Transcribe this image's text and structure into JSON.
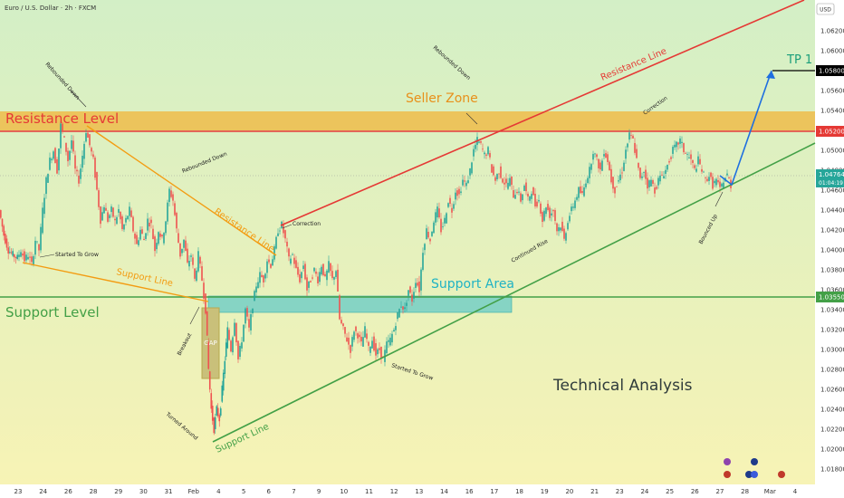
{
  "header": {
    "symbol_title": "Euro / U.S. Dollar · 2h · FXCM"
  },
  "currency_button": "USD",
  "chart_data": {
    "type": "candlestick",
    "title": "Euro / U.S. Dollar · 2h · FXCM",
    "ylim": [
      1.0176,
      1.0652
    ],
    "y_ticks": [
      "1.06200",
      "1.06000",
      "1.05800",
      "1.05600",
      "1.05400",
      "1.05200",
      "1.05000",
      "1.04800",
      "1.04600",
      "1.04400",
      "1.04200",
      "1.04000",
      "1.03800",
      "1.03600",
      "1.03400",
      "1.03200",
      "1.03000",
      "1.02800",
      "1.02600",
      "1.02400",
      "1.02200",
      "1.02000",
      "1.01800"
    ],
    "x_ticks": [
      "23",
      "24",
      "26",
      "28",
      "29",
      "30",
      "31",
      "Feb",
      "4",
      "5",
      "6",
      "7",
      "9",
      "10",
      "11",
      "12",
      "13",
      "14",
      "16",
      "17",
      "18",
      "19",
      "20",
      "21",
      "23",
      "24",
      "25",
      "26",
      "27",
      "28",
      "Mar",
      "4"
    ],
    "price_labels": {
      "tp": "1.05800",
      "resistance": "1.05200",
      "current_price": "1.04764",
      "countdown": "01:04:19",
      "support": "1.03550"
    },
    "levels": {
      "resistance": 1.052,
      "support": 1.0355,
      "tp": 1.058,
      "current": 1.04764,
      "seller_zone": [
        1.052,
        1.0542
      ],
      "support_area": [
        1.0341,
        1.0355
      ]
    },
    "path_points": [
      [
        0,
        1.044
      ],
      [
        5,
        1.0415
      ],
      [
        10,
        1.04
      ],
      [
        15,
        1.0395
      ],
      [
        20,
        1.0392
      ],
      [
        24,
        1.04
      ],
      [
        28,
        1.039
      ],
      [
        32,
        1.0395
      ],
      [
        36,
        1.0385
      ],
      [
        40,
        1.041
      ],
      [
        44,
        1.04
      ],
      [
        48,
        1.044
      ],
      [
        52,
        1.047
      ],
      [
        56,
        1.049
      ],
      [
        60,
        1.05
      ],
      [
        64,
        1.048
      ],
      [
        68,
        1.0525
      ],
      [
        72,
        1.051
      ],
      [
        76,
        1.049
      ],
      [
        80,
        1.051
      ],
      [
        84,
        1.048
      ],
      [
        88,
        1.047
      ],
      [
        92,
        1.0495
      ],
      [
        96,
        1.052
      ],
      [
        100,
        1.0505
      ],
      [
        104,
        1.049
      ],
      [
        108,
        1.046
      ],
      [
        112,
        1.043
      ],
      [
        116,
        1.0445
      ],
      [
        120,
        1.043
      ],
      [
        124,
        1.044
      ],
      [
        128,
        1.0428
      ],
      [
        132,
        1.044
      ],
      [
        136,
        1.042
      ],
      [
        140,
        1.043
      ],
      [
        144,
        1.044
      ],
      [
        148,
        1.042
      ],
      [
        152,
        1.0405
      ],
      [
        156,
        1.042
      ],
      [
        160,
        1.041
      ],
      [
        164,
        1.043
      ],
      [
        168,
        1.0425
      ],
      [
        172,
        1.04
      ],
      [
        176,
        1.042
      ],
      [
        180,
        1.041
      ],
      [
        184,
        1.043
      ],
      [
        188,
        1.046
      ],
      [
        192,
        1.045
      ],
      [
        196,
        1.042
      ],
      [
        200,
        1.0395
      ],
      [
        204,
        1.041
      ],
      [
        208,
        1.0385
      ],
      [
        212,
        1.0395
      ],
      [
        216,
        1.037
      ],
      [
        220,
        1.0395
      ],
      [
        224,
        1.037
      ],
      [
        228,
        1.034
      ],
      [
        231,
        1.028
      ],
      [
        234,
        1.024
      ],
      [
        237,
        1.022
      ],
      [
        240,
        1.024
      ],
      [
        243,
        1.023
      ],
      [
        246,
        1.026
      ],
      [
        249,
        1.029
      ],
      [
        252,
        1.032
      ],
      [
        256,
        1.03
      ],
      [
        260,
        1.033
      ],
      [
        264,
        1.029
      ],
      [
        268,
        1.031
      ],
      [
        272,
        1.034
      ],
      [
        276,
        1.032
      ],
      [
        280,
        1.0345
      ],
      [
        284,
        1.0365
      ],
      [
        288,
        1.0375
      ],
      [
        292,
        1.037
      ],
      [
        296,
        1.039
      ],
      [
        300,
        1.0385
      ],
      [
        304,
        1.04
      ],
      [
        308,
        1.042
      ],
      [
        312,
        1.0425
      ],
      [
        316,
        1.041
      ],
      [
        320,
        1.039
      ],
      [
        324,
        1.0395
      ],
      [
        328,
        1.038
      ],
      [
        332,
        1.037
      ],
      [
        336,
        1.0385
      ],
      [
        340,
        1.036
      ],
      [
        344,
        1.037
      ],
      [
        348,
        1.038
      ],
      [
        352,
        1.037
      ],
      [
        356,
        1.0385
      ],
      [
        360,
        1.037
      ],
      [
        364,
        1.0385
      ],
      [
        368,
        1.037
      ],
      [
        372,
        1.038
      ],
      [
        376,
        1.033
      ],
      [
        380,
        1.032
      ],
      [
        384,
        1.031
      ],
      [
        388,
        1.03
      ],
      [
        392,
        1.032
      ],
      [
        396,
        1.0315
      ],
      [
        400,
        1.0305
      ],
      [
        404,
        1.032
      ],
      [
        408,
        1.03
      ],
      [
        412,
        1.031
      ],
      [
        416,
        1.0295
      ],
      [
        420,
        1.03
      ],
      [
        424,
        1.029
      ],
      [
        428,
        1.0305
      ],
      [
        432,
        1.031
      ],
      [
        436,
        1.032
      ],
      [
        440,
        1.0335
      ],
      [
        444,
        1.0345
      ],
      [
        448,
        1.034
      ],
      [
        452,
        1.036
      ],
      [
        456,
        1.035
      ],
      [
        460,
        1.037
      ],
      [
        464,
        1.036
      ],
      [
        468,
        1.04
      ],
      [
        472,
        1.042
      ],
      [
        476,
        1.041
      ],
      [
        480,
        1.043
      ],
      [
        484,
        1.044
      ],
      [
        488,
        1.042
      ],
      [
        492,
        1.043
      ],
      [
        496,
        1.045
      ],
      [
        500,
        1.044
      ],
      [
        504,
        1.046
      ],
      [
        508,
        1.0455
      ],
      [
        512,
        1.047
      ],
      [
        516,
        1.0465
      ],
      [
        520,
        1.048
      ],
      [
        524,
        1.05
      ],
      [
        528,
        1.051
      ],
      [
        532,
        1.0505
      ],
      [
        536,
        1.0495
      ],
      [
        540,
        1.05
      ],
      [
        544,
        1.048
      ],
      [
        548,
        1.047
      ],
      [
        552,
        1.048
      ],
      [
        556,
        1.047
      ],
      [
        560,
        1.0465
      ],
      [
        564,
        1.047
      ],
      [
        568,
        1.0455
      ],
      [
        572,
        1.046
      ],
      [
        576,
        1.045
      ],
      [
        580,
        1.0465
      ],
      [
        584,
        1.045
      ],
      [
        588,
        1.046
      ],
      [
        592,
        1.0445
      ],
      [
        596,
        1.045
      ],
      [
        600,
        1.043
      ],
      [
        604,
        1.0445
      ],
      [
        608,
        1.0435
      ],
      [
        612,
        1.044
      ],
      [
        616,
        1.042
      ],
      [
        620,
        1.0425
      ],
      [
        624,
        1.041
      ],
      [
        628,
        1.043
      ],
      [
        632,
        1.044
      ],
      [
        636,
        1.045
      ],
      [
        640,
        1.046
      ],
      [
        644,
        1.0455
      ],
      [
        648,
        1.047
      ],
      [
        652,
        1.048
      ],
      [
        656,
        1.05
      ],
      [
        660,
        1.049
      ],
      [
        664,
        1.048
      ],
      [
        668,
        1.05
      ],
      [
        672,
        1.049
      ],
      [
        676,
        1.047
      ],
      [
        680,
        1.046
      ],
      [
        684,
        1.047
      ],
      [
        688,
        1.048
      ],
      [
        692,
        1.05
      ],
      [
        696,
        1.0515
      ],
      [
        700,
        1.051
      ],
      [
        704,
        1.049
      ],
      [
        708,
        1.047
      ],
      [
        712,
        1.048
      ],
      [
        716,
        1.0465
      ],
      [
        720,
        1.047
      ],
      [
        724,
        1.046
      ],
      [
        728,
        1.047
      ],
      [
        732,
        1.0475
      ],
      [
        736,
        1.048
      ],
      [
        740,
        1.049
      ],
      [
        744,
        1.05
      ],
      [
        748,
        1.0505
      ],
      [
        752,
        1.051
      ],
      [
        756,
        1.05
      ],
      [
        760,
        1.0495
      ],
      [
        764,
        1.049
      ],
      [
        768,
        1.048
      ],
      [
        772,
        1.049
      ],
      [
        776,
        1.048
      ],
      [
        780,
        1.047
      ],
      [
        784,
        1.0475
      ],
      [
        788,
        1.0465
      ],
      [
        792,
        1.047
      ],
      [
        796,
        1.046
      ],
      [
        800,
        1.047
      ],
      [
        804,
        1.0475
      ],
      [
        808,
        1.0465
      ]
    ]
  },
  "annotations": {
    "resistance_level": "Resistance Level",
    "support_level": "Support Level",
    "seller_zone": "Seller Zone",
    "support_area": "Support Area",
    "resistance_line_top": "Resistance Line",
    "resistance_line_mid": "Resistance Line",
    "support_line_left": "Support Line",
    "support_line_bottom": "Support Line",
    "tp": "TP 1",
    "gap": "GAP",
    "technical_analysis": "Technical Analysis",
    "rebounded_down_1": "Rebounded Down",
    "rebounded_down_2": "Rebounded Down",
    "rebounded_down_3": "Rebounded Down",
    "started_to_grow_1": "Started To Grow",
    "started_to_grow_2": "Started To Grow",
    "breakout": "Breakout",
    "turned_around": "Turned Around",
    "correction_1": "Correction",
    "correction_2": "Correction",
    "continued_rise": "Continued Rise",
    "bounced_up": "Bounced Up"
  },
  "colors": {
    "bg_top": "#d5f0c8",
    "bg_bottom": "#f6f2b6",
    "up": "#26a69a",
    "down": "#ef5350",
    "resistance": "#e53935",
    "support": "#43a047",
    "orange": "#f39c12",
    "seller_zone": "#f2b53a",
    "support_area": "#5bc8c8",
    "tp": "#1a9e7a",
    "blue_path": "#1e6fe0",
    "gap": "#c9c07a"
  }
}
